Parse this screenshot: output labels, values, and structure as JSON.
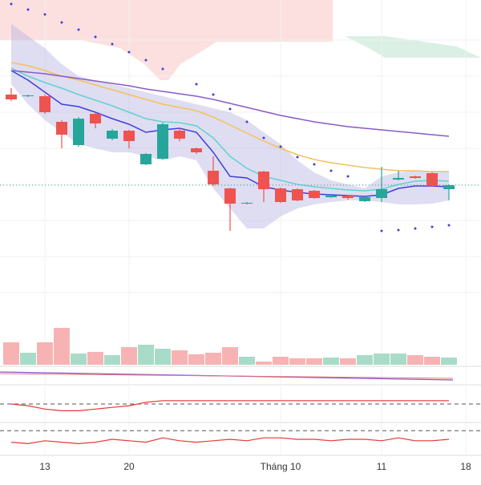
{
  "chart_data": {
    "type": "candlestick",
    "categories": [
      null,
      null,
      "13",
      null,
      null,
      null,
      null,
      "20",
      null,
      null,
      null,
      null,
      null,
      null,
      null,
      null,
      "Tháng 10",
      null,
      null,
      null,
      null,
      null,
      "11",
      null,
      null,
      null,
      null,
      "18"
    ],
    "open": [
      282,
      280,
      280,
      248,
      219,
      258,
      227,
      237,
      195,
      202,
      237,
      215,
      187,
      165,
      146,
      186,
      165,
      164,
      162,
      154,
      156,
      149,
      153,
      176,
      180,
      184,
      164,
      null
    ],
    "close": [
      276,
      281,
      260,
      232,
      252,
      246,
      237,
      224,
      208,
      245,
      227,
      210,
      170,
      146,
      147,
      164,
      148,
      150,
      153,
      156,
      153,
      154,
      164,
      178,
      178,
      168,
      169,
      null
    ],
    "high": [
      290,
      282,
      282,
      250,
      254,
      260,
      239,
      238,
      209,
      247,
      240,
      216,
      205,
      166,
      148,
      187,
      166,
      165,
      163,
      157,
      157,
      155,
      192,
      187,
      181,
      185,
      170,
      null
    ],
    "low": [
      274,
      279,
      258,
      215,
      217,
      240,
      225,
      215,
      194,
      201,
      224,
      208,
      168,
      112,
      145,
      148,
      147,
      149,
      152,
      153,
      151,
      148,
      148,
      175,
      177,
      167,
      150,
      null
    ],
    "up_color": "#26a69a",
    "down_color": "#ef5350",
    "ylim": [
      0,
      400
    ],
    "lines": [
      {
        "color": "#3f3fd8",
        "values": [
          312,
          300,
          285,
          270,
          267,
          260,
          252,
          245,
          235,
          238,
          240,
          235,
          210,
          180,
          178,
          167,
          163,
          160,
          158,
          157,
          156,
          155,
          157,
          165,
          168,
          168,
          167,
          null
        ]
      },
      {
        "color": "#5fd3d3",
        "values": [
          315,
          305,
          297,
          290,
          282,
          275,
          268,
          260,
          252,
          248,
          247,
          243,
          228,
          205,
          190,
          180,
          175,
          170,
          167,
          165,
          163,
          162,
          164,
          170,
          174,
          175,
          174,
          null
        ]
      },
      {
        "color": "#f5c15a",
        "values": [
          322,
          318,
          312,
          305,
          300,
          294,
          288,
          282,
          276,
          270,
          266,
          262,
          254,
          244,
          234,
          224,
          215,
          207,
          201,
          197,
          194,
          191,
          189,
          187,
          187,
          186,
          186,
          null
        ]
      },
      {
        "color": "#8a5ac8",
        "values": [
          312,
          310,
          308,
          305,
          302,
          299,
          296,
          293,
          289,
          286,
          283,
          280,
          276,
          271,
          266,
          261,
          256,
          252,
          248,
          245,
          242,
          240,
          238,
          236,
          234,
          232,
          230,
          null
        ]
      }
    ],
    "band": {
      "color": "#b8b4e0",
      "upper": [
        370,
        355,
        340,
        320,
        305,
        300,
        295,
        290,
        285,
        280,
        275,
        270,
        265,
        260,
        250,
        235,
        220,
        200,
        185,
        175,
        170,
        165,
        180,
        185,
        187,
        187,
        185,
        null
      ],
      "lower": [
        295,
        270,
        250,
        235,
        220,
        215,
        210,
        210,
        205,
        200,
        205,
        200,
        165,
        140,
        115,
        115,
        130,
        140,
        145,
        148,
        150,
        150,
        148,
        145,
        145,
        146,
        150,
        null
      ]
    },
    "sar": {
      "color": "#3f3fd8",
      "values": [
        395,
        388,
        382,
        372,
        363,
        354,
        345,
        335,
        325,
        314,
        null,
        295,
        282,
        264,
        248,
        228,
        217,
        204,
        195,
        187,
        180,
        null,
        112,
        113,
        115,
        117,
        119,
        null
      ]
    },
    "volume": {
      "ylim": [
        0,
        60
      ],
      "up_color": "#a8dcc8",
      "down_color": "#f7b3b3",
      "values": [
        28,
        15,
        28,
        46,
        14,
        16,
        12,
        22,
        25,
        20,
        18,
        13,
        15,
        22,
        10,
        4,
        10,
        8,
        8,
        9,
        8,
        12,
        14,
        14,
        12,
        10,
        9,
        null
      ]
    },
    "indicators": [
      {
        "ylim": [
          0,
          20
        ],
        "ref": 10,
        "color": "#e53935",
        "values": [
          10,
          9,
          7,
          6,
          6,
          7,
          8,
          9,
          11,
          12,
          12,
          12,
          12,
          12,
          12,
          12,
          12,
          12,
          12,
          12,
          12,
          12,
          12,
          12,
          12,
          12,
          12,
          null
        ]
      },
      {
        "ylim": [
          0,
          20
        ],
        "ref": 16,
        "color": "#e53935",
        "values": [
          8,
          7,
          9,
          8,
          7,
          8,
          10,
          9,
          8,
          11,
          9,
          8,
          9,
          10,
          9,
          11,
          11,
          10,
          10,
          9,
          10,
          10,
          9,
          11,
          9,
          9,
          10,
          null
        ]
      }
    ]
  }
}
